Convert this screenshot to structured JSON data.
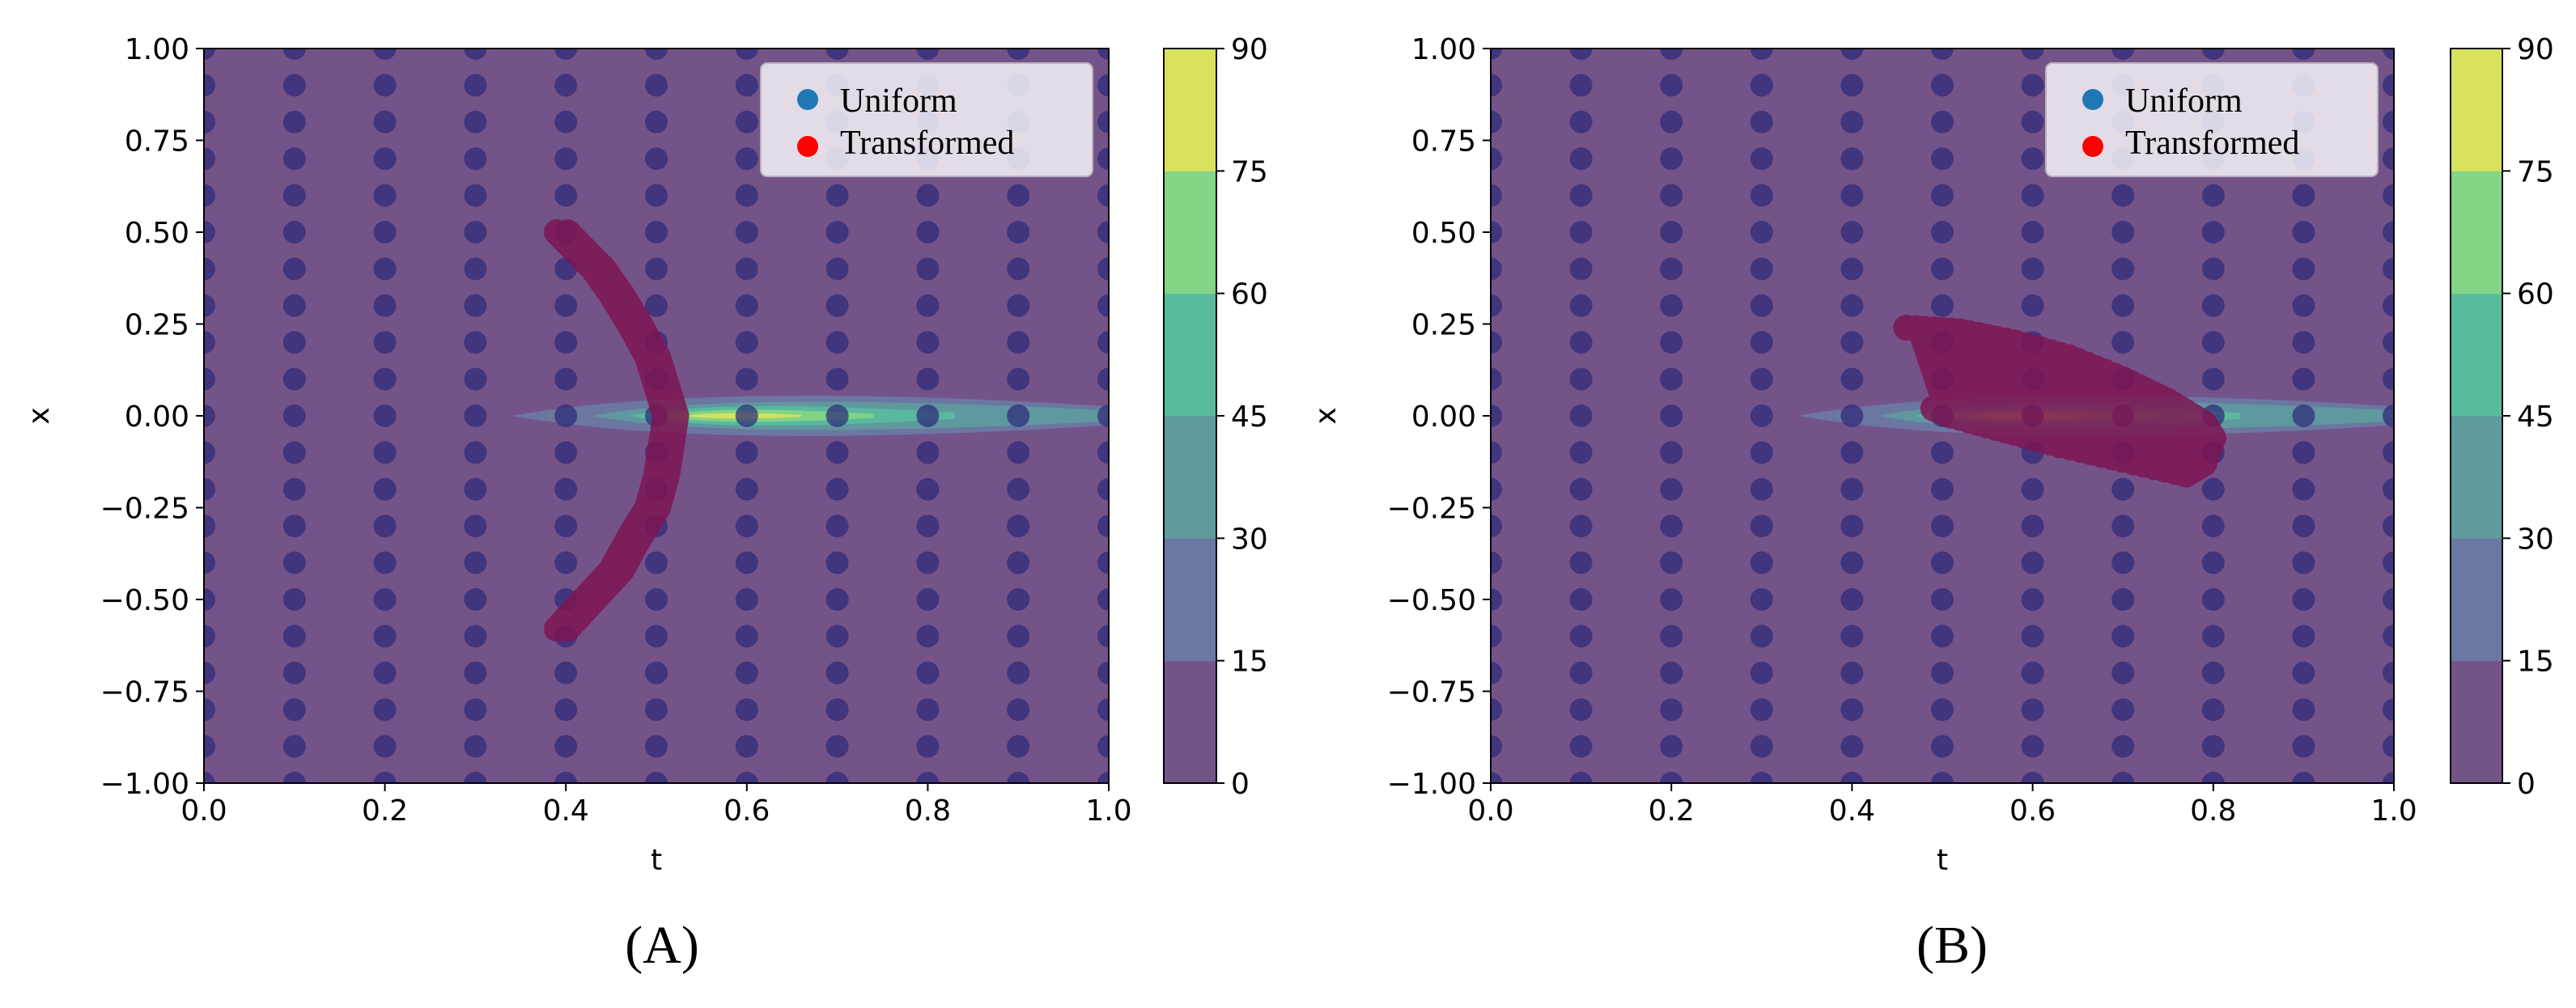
{
  "figure": {
    "panels": [
      {
        "caption": "(A)",
        "xlabel": "t",
        "ylabel": "x"
      },
      {
        "caption": "(B)",
        "xlabel": "t",
        "ylabel": "x"
      }
    ]
  },
  "colors": {
    "uniform_legend": "#1f77b4",
    "uniform_points": "#2e2a78",
    "transformed_legend": "#ff0000",
    "transformed_points": "#7e1552",
    "contour_levels": [
      "#745389",
      "#6b79a2",
      "#5f9a9f",
      "#58bb9f",
      "#84d585",
      "#d8e25c"
    ]
  },
  "chart_data": [
    {
      "type": "contour_scatter",
      "title": "",
      "xlabel": "t",
      "ylabel": "x",
      "xlim": [
        0.0,
        1.0
      ],
      "ylim": [
        -1.0,
        1.0
      ],
      "xticks": [
        "0.0",
        "0.2",
        "0.4",
        "0.6",
        "0.8",
        "1.0"
      ],
      "yticks": [
        "1.00",
        "0.75",
        "0.50",
        "0.25",
        "0.00",
        "−0.25",
        "−0.50",
        "−0.75",
        "−1.00"
      ],
      "colorbar": {
        "ticks": [
          "0",
          "15",
          "30",
          "45",
          "60",
          "75",
          "90"
        ],
        "range": [
          0,
          90
        ]
      },
      "legend": {
        "position": "upper right",
        "entries": [
          "Uniform",
          "Transformed"
        ]
      },
      "contour": {
        "center_t": 0.57,
        "peak": 88,
        "t_start": 0.34,
        "t_end": 1.0,
        "half_width_x": 0.05
      },
      "uniform": {
        "t_values": [
          0.0,
          0.1,
          0.2,
          0.3,
          0.4,
          0.5,
          0.6,
          0.7,
          0.8,
          0.9,
          1.0
        ],
        "x_start": -1.0,
        "x_end": 1.0,
        "x_step": 0.1
      },
      "transformed": {
        "shape": "arc",
        "points": [
          [
            0.39,
            0.5
          ],
          [
            0.41,
            0.45
          ],
          [
            0.43,
            0.4
          ],
          [
            0.45,
            0.33
          ],
          [
            0.47,
            0.25
          ],
          [
            0.49,
            0.16
          ],
          [
            0.5,
            0.08
          ],
          [
            0.51,
            0.0
          ],
          [
            0.505,
            -0.08
          ],
          [
            0.5,
            -0.16
          ],
          [
            0.49,
            -0.25
          ],
          [
            0.47,
            -0.33
          ],
          [
            0.45,
            -0.42
          ],
          [
            0.42,
            -0.5
          ],
          [
            0.39,
            -0.58
          ]
        ]
      }
    },
    {
      "type": "contour_scatter",
      "title": "",
      "xlabel": "t",
      "ylabel": "x",
      "xlim": [
        0.0,
        1.0
      ],
      "ylim": [
        -1.0,
        1.0
      ],
      "xticks": [
        "0.0",
        "0.2",
        "0.4",
        "0.6",
        "0.8",
        "1.0"
      ],
      "yticks": [
        "1.00",
        "0.75",
        "0.50",
        "0.25",
        "0.00",
        "−0.25",
        "−0.50",
        "−0.75",
        "−1.00"
      ],
      "colorbar": {
        "ticks": [
          "0",
          "15",
          "30",
          "45",
          "60",
          "75",
          "90"
        ],
        "range": [
          0,
          90
        ]
      },
      "legend": {
        "position": "upper right",
        "entries": [
          "Uniform",
          "Transformed"
        ]
      },
      "contour": {
        "center_t": 0.57,
        "peak": 88,
        "t_start": 0.34,
        "t_end": 1.0,
        "half_width_x": 0.05
      },
      "uniform": {
        "t_values": [
          0.0,
          0.1,
          0.2,
          0.3,
          0.4,
          0.5,
          0.6,
          0.7,
          0.8,
          0.9,
          1.0
        ],
        "x_start": -1.0,
        "x_end": 1.0,
        "x_step": 0.1
      },
      "transformed": {
        "shape": "fan",
        "top_edge": [
          [
            0.46,
            0.24
          ],
          [
            0.52,
            0.23
          ],
          [
            0.58,
            0.2
          ],
          [
            0.64,
            0.16
          ],
          [
            0.7,
            0.1
          ],
          [
            0.75,
            0.04
          ],
          [
            0.79,
            -0.02
          ],
          [
            0.8,
            -0.06
          ]
        ],
        "right_edge": [
          [
            0.8,
            -0.06
          ],
          [
            0.79,
            -0.13
          ],
          [
            0.77,
            -0.16
          ]
        ],
        "bottom_edge": [
          [
            0.77,
            -0.16
          ],
          [
            0.7,
            -0.12
          ],
          [
            0.63,
            -0.08
          ],
          [
            0.57,
            -0.04
          ],
          [
            0.51,
            0.0
          ],
          [
            0.49,
            0.02
          ]
        ]
      }
    }
  ]
}
